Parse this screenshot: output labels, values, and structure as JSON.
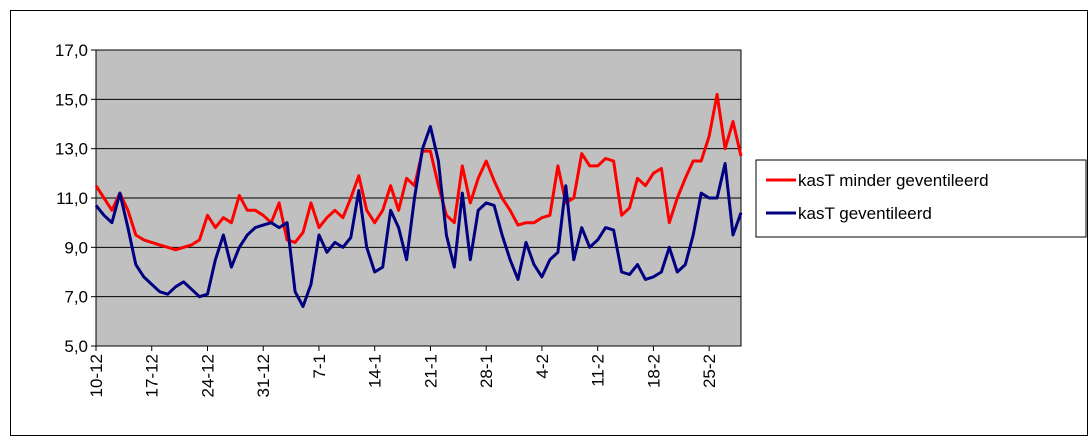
{
  "chart_data": {
    "type": "line",
    "categories": [
      "10-12",
      null,
      null,
      null,
      null,
      null,
      null,
      "17-12",
      null,
      null,
      null,
      null,
      null,
      null,
      "24-12",
      null,
      null,
      null,
      null,
      null,
      null,
      "31-12",
      null,
      null,
      null,
      null,
      null,
      null,
      "7-1",
      null,
      null,
      null,
      null,
      null,
      null,
      "14-1",
      null,
      null,
      null,
      null,
      null,
      null,
      "21-1",
      null,
      null,
      null,
      null,
      null,
      null,
      "28-1",
      null,
      null,
      null,
      null,
      null,
      null,
      "4-2",
      null,
      null,
      null,
      null,
      null,
      null,
      "11-2",
      null,
      null,
      null,
      null,
      null,
      null,
      "18-2",
      null,
      null,
      null,
      null,
      null,
      null,
      "25-2",
      null,
      null,
      null,
      null
    ],
    "series": [
      {
        "name": "kasT minder geventileerd",
        "color": "#ff0000",
        "values": [
          11.5,
          11.0,
          10.5,
          11.2,
          10.5,
          9.5,
          9.3,
          9.2,
          9.1,
          9.0,
          8.9,
          9.0,
          9.1,
          9.3,
          10.3,
          9.8,
          10.2,
          10.0,
          11.1,
          10.5,
          10.5,
          10.3,
          10.0,
          10.8,
          9.3,
          9.2,
          9.6,
          10.8,
          9.8,
          10.2,
          10.5,
          10.2,
          11.0,
          11.9,
          10.5,
          10.0,
          10.5,
          11.5,
          10.5,
          11.8,
          11.5,
          12.9,
          12.9,
          11.5,
          10.3,
          10.0,
          12.3,
          10.8,
          11.8,
          12.5,
          11.7,
          11.0,
          10.5,
          9.9,
          10.0,
          10.0,
          10.2,
          10.3,
          12.3,
          10.8,
          11.0,
          12.8,
          12.3,
          12.3,
          12.6,
          12.5,
          10.3,
          10.6,
          11.8,
          11.5,
          12.0,
          12.2,
          10.0,
          11.0,
          11.8,
          12.5,
          12.5,
          13.5,
          15.2,
          13.0,
          14.1,
          12.7
        ]
      },
      {
        "name": "kasT geventileerd",
        "color": "#000080",
        "values": [
          10.7,
          10.3,
          10.0,
          11.2,
          9.8,
          8.3,
          7.8,
          7.5,
          7.2,
          7.1,
          7.4,
          7.6,
          7.3,
          7.0,
          7.1,
          8.5,
          9.5,
          8.2,
          9.0,
          9.5,
          9.8,
          9.9,
          10.0,
          9.8,
          10.0,
          7.2,
          6.6,
          7.5,
          9.5,
          8.8,
          9.2,
          9.0,
          9.4,
          11.3,
          9.0,
          8.0,
          8.2,
          10.5,
          9.8,
          8.5,
          11.0,
          13.0,
          13.9,
          12.5,
          9.5,
          8.2,
          11.2,
          8.5,
          10.5,
          10.8,
          10.7,
          9.5,
          8.5,
          7.7,
          9.2,
          8.3,
          7.8,
          8.5,
          8.8,
          11.5,
          8.5,
          9.8,
          9.0,
          9.3,
          9.8,
          9.7,
          8.0,
          7.9,
          8.3,
          7.7,
          7.8,
          8.0,
          9.0,
          8.0,
          8.3,
          9.5,
          11.2,
          11.0,
          11.0,
          12.4,
          9.5,
          10.4
        ]
      }
    ],
    "ylim": [
      5,
      17
    ],
    "yticks": [
      {
        "value": 5,
        "label": "5,0"
      },
      {
        "value": 7,
        "label": "7,0"
      },
      {
        "value": 9,
        "label": "9,0"
      },
      {
        "value": 11,
        "label": "11,0"
      },
      {
        "value": 13,
        "label": "13,0"
      },
      {
        "value": 15,
        "label": "15,0"
      },
      {
        "value": 17,
        "label": "17,0"
      }
    ],
    "grid": true,
    "plot_background": "#c0c0c0",
    "legend": "right"
  }
}
